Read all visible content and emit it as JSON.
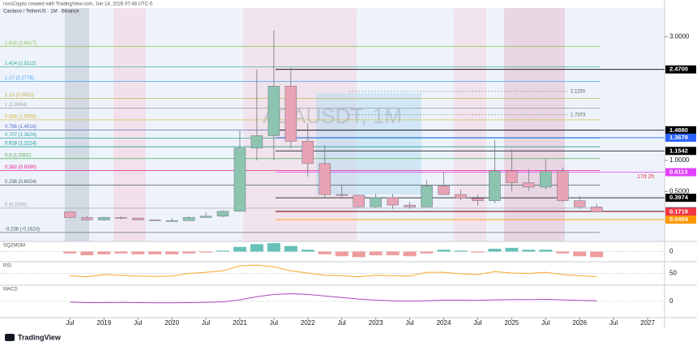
{
  "header": {
    "author": "rossCrypto created with TradingView.com, Jun 14, 2026 07:48 UTC-5",
    "footer": "TradingView"
  },
  "chart_data": {
    "type": "candlestick",
    "title": "Cardano / TetherUS · 1M · Binance",
    "watermark": "ADAUSDT, 1M",
    "x": [
      2018.5,
      2018.75,
      2019,
      2019.25,
      2019.5,
      2019.75,
      2020,
      2020.25,
      2020.5,
      2020.75,
      2021,
      2021.25,
      2021.5,
      2021.75,
      2022,
      2022.25,
      2022.5,
      2022.75,
      2023,
      2023.25,
      2023.5,
      2023.75,
      2024,
      2024.25,
      2024.5,
      2024.75,
      2025,
      2025.25,
      2025.5,
      2025.75,
      2026,
      2026.25
    ],
    "open": [
      0.17,
      0.08,
      0.04,
      0.08,
      0.07,
      0.04,
      0.03,
      0.03,
      0.08,
      0.1,
      0.18,
      1.2,
      1.4,
      2.2,
      1.31,
      0.95,
      0.45,
      0.44,
      0.25,
      0.4,
      0.28,
      0.25,
      0.59,
      0.45,
      0.39,
      0.35,
      0.83,
      0.64,
      0.57,
      0.82,
      0.35,
      0.25
    ],
    "high": [
      0.18,
      0.1,
      0.09,
      0.1,
      0.08,
      0.05,
      0.07,
      0.1,
      0.16,
      0.19,
      1.48,
      2.47,
      3.1,
      2.5,
      1.6,
      1.25,
      0.6,
      0.45,
      0.46,
      0.46,
      0.33,
      0.68,
      0.81,
      0.53,
      0.45,
      1.33,
      1.18,
      0.86,
      1.02,
      0.89,
      0.43,
      0.3
    ],
    "low": [
      0.07,
      0.03,
      0.03,
      0.05,
      0.04,
      0.03,
      0.02,
      0.03,
      0.08,
      0.08,
      0.17,
      1.0,
      1.0,
      1.2,
      0.74,
      0.4,
      0.4,
      0.24,
      0.24,
      0.22,
      0.22,
      0.24,
      0.44,
      0.36,
      0.27,
      0.31,
      0.5,
      0.51,
      0.53,
      0.33,
      0.22,
      0.17
    ],
    "close": [
      0.08,
      0.04,
      0.08,
      0.07,
      0.04,
      0.03,
      0.03,
      0.08,
      0.1,
      0.18,
      1.2,
      1.4,
      2.2,
      1.31,
      0.95,
      0.45,
      0.44,
      0.25,
      0.4,
      0.28,
      0.25,
      0.59,
      0.45,
      0.39,
      0.35,
      0.83,
      0.64,
      0.57,
      0.82,
      0.35,
      0.25,
      0.17
    ],
    "up_color": "#8cc4b0",
    "down_color": "#e8a3b5",
    "xlim": [
      2017.47,
      2027.25
    ],
    "xticks": [
      {
        "value": 2018.5,
        "label": "Jul"
      },
      2019,
      {
        "value": 2019.5,
        "label": "Jul"
      },
      2020,
      {
        "value": 2020.5,
        "label": "Jul"
      },
      2021,
      {
        "value": 2021.5,
        "label": "Jul"
      },
      2022,
      {
        "value": 2022.5,
        "label": "Jul"
      },
      2023,
      {
        "value": 2023.5,
        "label": "Jul"
      },
      2024,
      {
        "value": 2024.5,
        "label": "Jul"
      },
      2025,
      {
        "value": 2025.5,
        "label": "Jul"
      },
      2026,
      {
        "value": 2026.5,
        "label": "Jul"
      },
      2027
    ],
    "ylim": [
      -0.307,
      3.46
    ],
    "yticks": [
      {
        "value": 3,
        "label": "3.0000"
      },
      {
        "value": 1,
        "label": "1.0000"
      },
      {
        "value": 0.5,
        "label": "0.5000"
      }
    ],
    "fib_levels": [
      {
        "label": "1.618 (2.8417)",
        "price": 2.8417,
        "color": "#8bc34a"
      },
      {
        "label": "1.414 (2.5112)",
        "price": 2.5112,
        "color": "#26a69a"
      },
      {
        "label": "1.27 (2.2778)",
        "price": 2.2778,
        "color": "#42a5f5"
      },
      {
        "label": "1.13 (2.0010)",
        "price": 2.001,
        "color": "#bdb13a"
      },
      {
        "label": "1 (1.8434)",
        "price": 1.8434,
        "color": "#9e9e9e"
      },
      {
        "label": "0.886 (1.6556)",
        "price": 1.6556,
        "color": "#d4b73a"
      },
      {
        "label": "0.786 (1.4916)",
        "price": 1.4916,
        "color": "#5c6bc0"
      },
      {
        "label": "0.707 (1.3624)",
        "price": 1.3624,
        "color": "#26a69a"
      },
      {
        "label": "0.618 (1.2214)",
        "price": 1.2214,
        "color": "#009688"
      },
      {
        "label": "0.5 (1.0302)",
        "price": 1.0302,
        "color": "#4caf50"
      },
      {
        "label": "0.382 (0.8390)",
        "price": 0.839,
        "color": "#e91e8c"
      },
      {
        "label": "0.236 (0.6024)",
        "price": 0.6024,
        "color": "#455a64"
      },
      {
        "label": "0 (0.2300)",
        "price": 0.23,
        "color": "#9e9e9e"
      },
      {
        "label": "-0.236 (-0.1624)",
        "price": -0.1624,
        "color": "#455a64"
      }
    ],
    "price_tags": [
      {
        "label": "2.4700",
        "value": 2.47,
        "bg": "#000000"
      },
      {
        "label": "1.4880",
        "value": 1.488,
        "bg": "#000000"
      },
      {
        "label": "1.3678",
        "value": 1.3678,
        "bg": "#2962ff"
      },
      {
        "label": "1.1542",
        "value": 1.1542,
        "bg": "#000000"
      },
      {
        "label": "0.8113",
        "value": 0.8113,
        "bg": "#e040fb"
      },
      {
        "label": "0.3974",
        "value": 0.3974,
        "bg": "#000000"
      },
      {
        "label": "0.1813",
        "value": 0.1813,
        "bg": "#455a64"
      },
      {
        "label": "0.1719",
        "value": 0.1719,
        "bg": "#f23645"
      },
      {
        "label": "0.0454",
        "value": 0.0454,
        "bg": "#ff9800"
      }
    ],
    "countdown": "17d 2h",
    "notes": [
      {
        "label": "2.1150",
        "value": 2.115
      },
      {
        "label": "1.7373",
        "value": 1.7373
      }
    ],
    "panes": [
      {
        "name": "SQZMOM",
        "ylim": [
          -1,
          1
        ],
        "yticks": [
          0
        ],
        "color": "#e57373",
        "values": [
          -0.2,
          -0.4,
          -0.3,
          -0.2,
          -0.3,
          -0.3,
          -0.3,
          -0.2,
          -0.1,
          0.1,
          0.5,
          0.8,
          0.9,
          0.6,
          0.2,
          -0.3,
          -0.5,
          -0.6,
          -0.4,
          -0.4,
          -0.5,
          -0.2,
          0.2,
          0.1,
          -0.1,
          0.3,
          0.4,
          0.2,
          0.2,
          -0.2,
          -0.5,
          -0.6
        ]
      },
      {
        "name": "RSI",
        "ylim": [
          0,
          100
        ],
        "yticks": [
          50
        ],
        "color": "#f9a825",
        "values": [
          40,
          35,
          45,
          42,
          38,
          36,
          38,
          50,
          55,
          62,
          85,
          88,
          80,
          62,
          52,
          42,
          40,
          35,
          42,
          40,
          38,
          55,
          55,
          48,
          45,
          58,
          52,
          50,
          55,
          45,
          40,
          35
        ]
      },
      {
        "name": "MACD",
        "ylim": [
          -1,
          1
        ],
        "yticks": [
          0
        ],
        "color": "#ab47bc",
        "values": [
          -0.05,
          -0.08,
          -0.08,
          -0.07,
          -0.08,
          -0.09,
          -0.09,
          -0.08,
          -0.06,
          -0.03,
          0.1,
          0.3,
          0.45,
          0.5,
          0.45,
          0.35,
          0.25,
          0.15,
          0.08,
          0.04,
          0.02,
          0.05,
          0.08,
          0.08,
          0.07,
          0.1,
          0.12,
          0.12,
          0.13,
          0.1,
          0.07,
          0.04
        ]
      }
    ]
  }
}
